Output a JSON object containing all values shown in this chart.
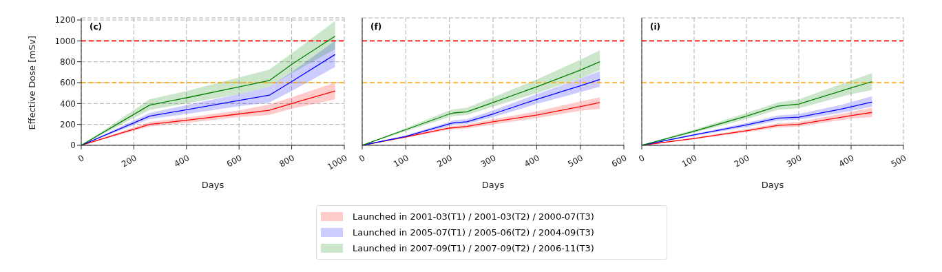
{
  "chart_data": [
    {
      "type": "line",
      "ylabel": "Effective Dose [mSv]",
      "xlabel": "Days",
      "annotations": [
        "(c)"
      ],
      "xlim": [
        0,
        1000
      ],
      "xticks": [
        0,
        200,
        400,
        600,
        800,
        1000
      ],
      "ylim": [
        0,
        1220
      ],
      "yticks": [
        0,
        200,
        400,
        600,
        800,
        1000,
        1200
      ],
      "grid": true,
      "line_style": "solid",
      "ref_lines": [
        {
          "axis": "y",
          "value": 1000,
          "color": "#ff0000",
          "line_style": "dashed"
        },
        {
          "axis": "y",
          "value": 600,
          "color": "#ffa500",
          "line_style": "dashed"
        }
      ],
      "series": [
        {
          "color": "#ff0000",
          "x": [
            0,
            260,
            400,
            600,
            715,
            800,
            965
          ],
          "values": [
            0,
            200,
            240,
            300,
            335,
            400,
            520
          ],
          "lower": [
            0,
            180,
            215,
            270,
            290,
            350,
            440
          ],
          "upper": [
            0,
            225,
            265,
            335,
            390,
            460,
            600
          ]
        },
        {
          "color": "#0000ff",
          "x": [
            0,
            260,
            400,
            600,
            715,
            800,
            965
          ],
          "values": [
            0,
            280,
            340,
            430,
            480,
            610,
            870
          ],
          "lower": [
            0,
            250,
            300,
            375,
            410,
            520,
            750
          ],
          "upper": [
            0,
            310,
            385,
            490,
            560,
            700,
            1000
          ]
        },
        {
          "color": "#008000",
          "x": [
            0,
            260,
            400,
            600,
            715,
            800,
            965
          ],
          "values": [
            0,
            385,
            455,
            560,
            620,
            775,
            1045
          ],
          "lower": [
            0,
            340,
            400,
            490,
            560,
            690,
            920
          ],
          "upper": [
            0,
            440,
            520,
            650,
            725,
            880,
            1190
          ]
        }
      ]
    },
    {
      "type": "line",
      "xlabel": "Days",
      "annotations": [
        "(f)"
      ],
      "xlim": [
        0,
        600
      ],
      "xticks": [
        0,
        100,
        200,
        300,
        400,
        500,
        600
      ],
      "ylim": [
        0,
        1220
      ],
      "yticks": [
        0,
        200,
        400,
        600,
        800,
        1000,
        1200
      ],
      "tick_labels": "x",
      "grid": true,
      "line_style": "solid",
      "legend": "bottom",
      "ref_lines": [
        {
          "axis": "y",
          "value": 1000,
          "color": "#ff0000",
          "line_style": "dashed"
        },
        {
          "axis": "y",
          "value": 600,
          "color": "#ffa500",
          "line_style": "dashed"
        }
      ],
      "series": [
        {
          "name": "Launched in 2001-03(T1) / 2001-03(T2) / 2000-07(T3)",
          "color": "#ff0000",
          "x": [
            0,
            100,
            200,
            240,
            300,
            400,
            500,
            545
          ],
          "values": [
            0,
            80,
            165,
            180,
            225,
            290,
            370,
            410
          ],
          "lower": [
            0,
            72,
            150,
            162,
            200,
            260,
            330,
            350
          ],
          "upper": [
            0,
            88,
            180,
            200,
            250,
            325,
            420,
            460
          ]
        },
        {
          "name": "Launched in 2005-07(T1) / 2005-06(T2) / 2004-09(T3)",
          "color": "#0000ff",
          "x": [
            0,
            100,
            200,
            210,
            240,
            300,
            400,
            500,
            545
          ],
          "values": [
            0,
            85,
            205,
            215,
            225,
            300,
            440,
            570,
            630
          ],
          "lower": [
            0,
            78,
            185,
            195,
            205,
            270,
            395,
            510,
            560
          ],
          "upper": [
            0,
            95,
            225,
            240,
            250,
            335,
            490,
            640,
            710
          ]
        },
        {
          "name": "Launched in 2007-09(T1) / 2007-09(T2) / 2006-11(T3)",
          "color": "#008000",
          "x": [
            0,
            100,
            200,
            210,
            240,
            300,
            400,
            500,
            545
          ],
          "values": [
            0,
            150,
            300,
            310,
            320,
            410,
            560,
            720,
            800
          ],
          "lower": [
            0,
            135,
            270,
            280,
            290,
            370,
            500,
            640,
            720
          ],
          "upper": [
            0,
            165,
            335,
            345,
            360,
            460,
            630,
            820,
            910
          ]
        }
      ]
    },
    {
      "type": "line",
      "xlabel": "Days",
      "annotations": [
        "(i)"
      ],
      "xlim": [
        0,
        500
      ],
      "xticks": [
        0,
        100,
        200,
        300,
        400,
        500
      ],
      "ylim": [
        0,
        1220
      ],
      "yticks": [
        0,
        200,
        400,
        600,
        800,
        1000,
        1200
      ],
      "tick_labels": "x",
      "grid": true,
      "line_style": "solid",
      "ref_lines": [
        {
          "axis": "y",
          "value": 1000,
          "color": "#ff0000",
          "line_style": "dashed"
        },
        {
          "axis": "y",
          "value": 600,
          "color": "#ffa500",
          "line_style": "dashed"
        }
      ],
      "series": [
        {
          "color": "#ff0000",
          "x": [
            0,
            100,
            200,
            260,
            300,
            400,
            440
          ],
          "values": [
            0,
            65,
            140,
            190,
            200,
            285,
            315
          ],
          "lower": [
            0,
            58,
            125,
            170,
            180,
            255,
            270
          ],
          "upper": [
            0,
            72,
            155,
            210,
            225,
            320,
            360
          ]
        },
        {
          "color": "#0000ff",
          "x": [
            0,
            100,
            200,
            260,
            300,
            380,
            440
          ],
          "values": [
            0,
            100,
            195,
            260,
            270,
            345,
            415
          ],
          "lower": [
            0,
            90,
            175,
            235,
            245,
            310,
            370
          ],
          "upper": [
            0,
            110,
            215,
            285,
            300,
            385,
            470
          ]
        },
        {
          "color": "#008000",
          "x": [
            0,
            100,
            200,
            260,
            300,
            400,
            440
          ],
          "values": [
            0,
            135,
            280,
            375,
            395,
            550,
            610
          ],
          "lower": [
            0,
            120,
            250,
            340,
            355,
            490,
            530
          ],
          "upper": [
            0,
            150,
            310,
            410,
            440,
            620,
            690
          ]
        }
      ]
    }
  ]
}
